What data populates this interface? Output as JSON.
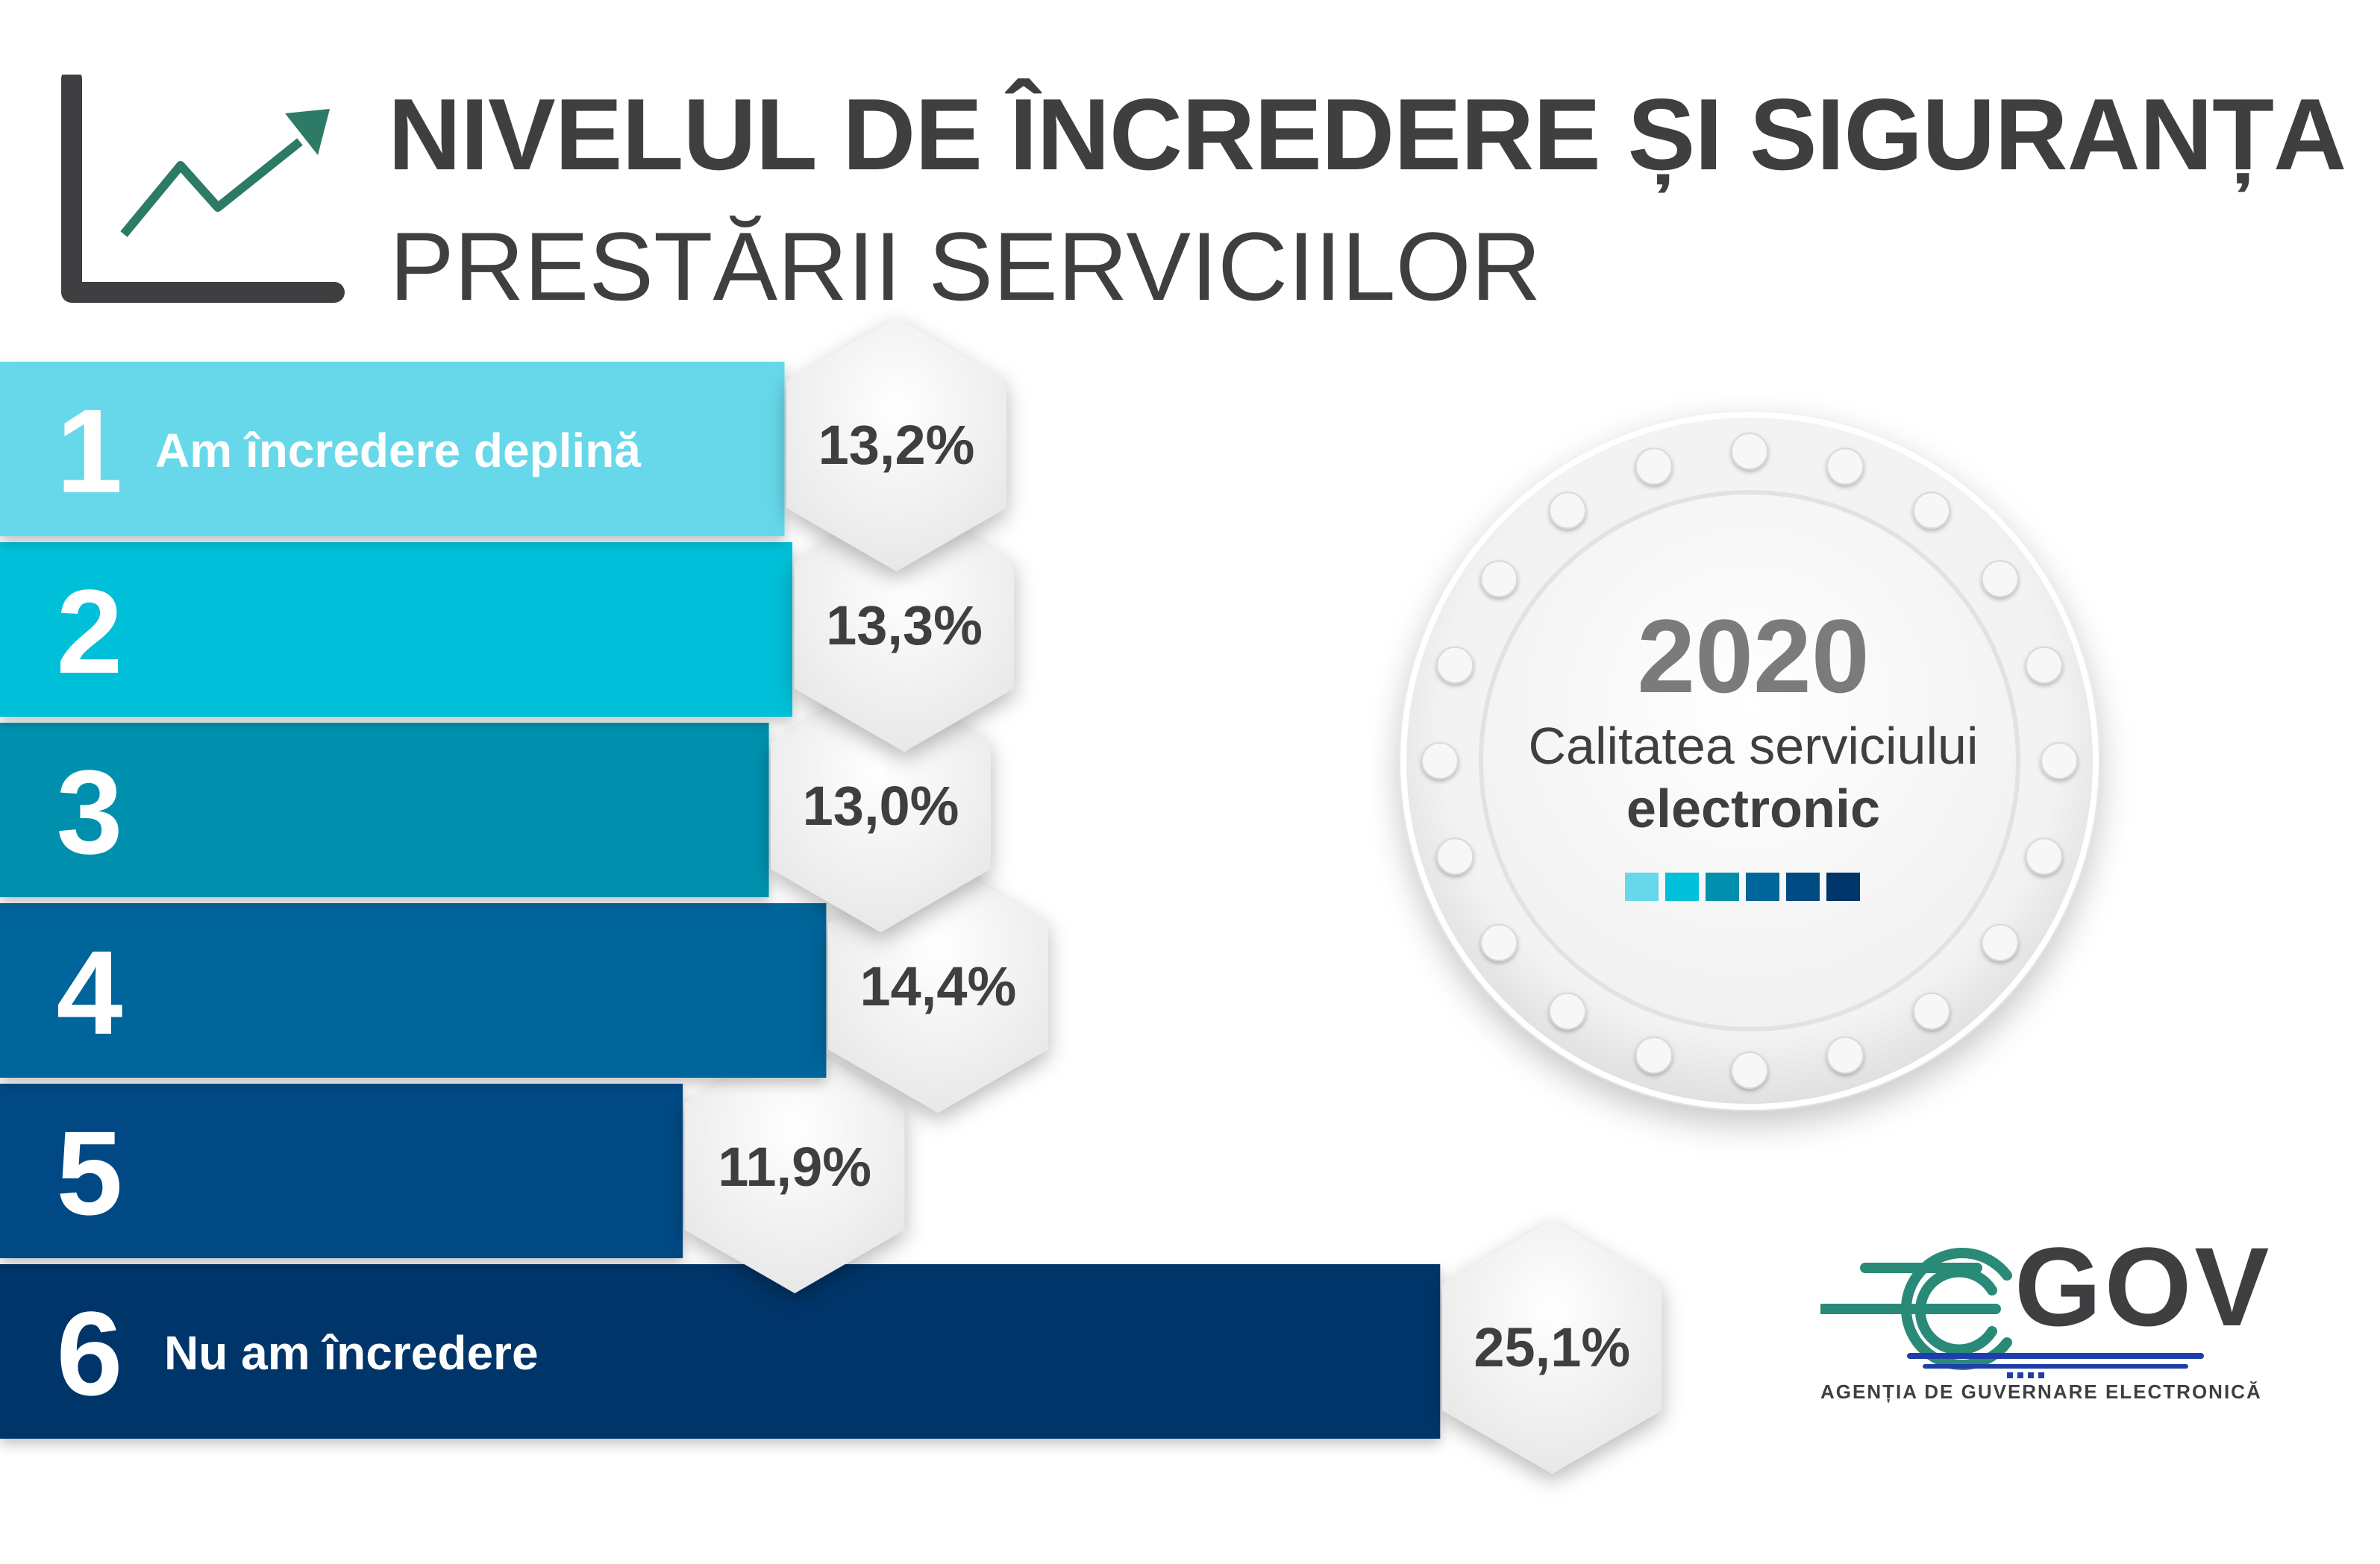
{
  "header": {
    "title_line1": "NIVELUL DE ÎNCREDERE ȘI SIGURANȚA",
    "title_line2": "PRESTĂRII SERVICIILOR",
    "icon": "trend-chart-icon"
  },
  "chart_data": {
    "type": "bar",
    "orientation": "horizontal",
    "title": "NIVELUL DE ÎNCREDERE ȘI SIGURANȚA PRESTĂRII SERVICIILOR",
    "categories": [
      "1",
      "2",
      "3",
      "4",
      "5",
      "6"
    ],
    "category_labels": [
      "Am încredere deplină",
      "",
      "",
      "",
      "",
      "Nu am încredere"
    ],
    "values": [
      13.2,
      13.3,
      13.0,
      14.4,
      11.9,
      25.1
    ],
    "value_labels": [
      "13,2%",
      "13,3%",
      "13,0%",
      "14,4%",
      "11,9%",
      "25,1%"
    ],
    "unit": "%",
    "colors": [
      "#66d8ea",
      "#00bfd8",
      "#0090ad",
      "#00659a",
      "#004a84",
      "#00356a"
    ]
  },
  "badge": {
    "year": "2020",
    "subtitle_line1": "Calitatea serviciului",
    "subtitle_line2": "electronic",
    "swatch_colors": [
      "#66d8ea",
      "#00bfd8",
      "#0090ad",
      "#00659a",
      "#004a84",
      "#00356a"
    ]
  },
  "logo": {
    "name": "GOV",
    "tagline": "AGENȚIA DE GUVERNARE ELECTRONICĂ",
    "icon": "egov-logo-icon",
    "colors": [
      "#2a8a78",
      "#1f3fa8"
    ]
  }
}
